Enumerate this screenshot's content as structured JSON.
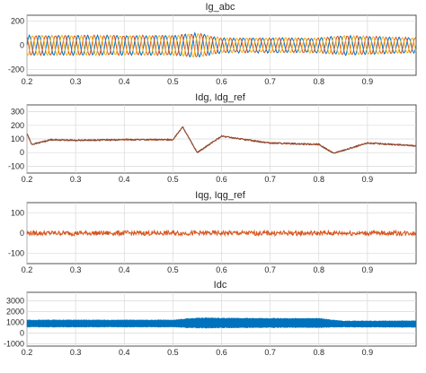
{
  "chart_data": [
    {
      "type": "line",
      "title": "Ig_abc",
      "xlim": [
        0.2,
        1.0
      ],
      "ylim": [
        -250,
        250
      ],
      "x_ticks": [
        "0.2",
        "0.3",
        "0.4",
        "0.5",
        "0.6",
        "0.7",
        "0.8",
        "0.9"
      ],
      "y_ticks": [
        "200",
        "0",
        "-200"
      ],
      "grid": true,
      "series": [
        {
          "color": "#0072bd",
          "x": [
            0.2,
            0.5,
            0.55,
            0.6,
            0.7,
            0.8,
            0.85,
            1.0
          ],
          "y_amplitude": [
            80,
            80,
            100,
            60,
            60,
            60,
            80,
            60
          ]
        },
        {
          "color": "#d95319",
          "x": [
            0.2,
            0.5,
            0.55,
            0.6,
            0.7,
            0.8,
            0.85,
            1.0
          ],
          "y_amplitude": [
            80,
            80,
            100,
            60,
            60,
            60,
            80,
            60
          ]
        },
        {
          "color": "#edb120",
          "x": [
            0.2,
            0.5,
            0.55,
            0.6,
            0.7,
            0.8,
            0.85,
            1.0
          ],
          "y_amplitude": [
            80,
            80,
            100,
            60,
            60,
            60,
            80,
            60
          ]
        }
      ]
    },
    {
      "type": "line",
      "title": "Idg, Idg_ref",
      "xlim": [
        0.2,
        1.0
      ],
      "ylim": [
        -150,
        350
      ],
      "x_ticks": [
        "0.2",
        "0.3",
        "0.4",
        "0.5",
        "0.6",
        "0.7",
        "0.8",
        "0.9"
      ],
      "y_ticks": [
        "300",
        "200",
        "100",
        "0",
        "-100"
      ],
      "grid": true,
      "series": [
        {
          "color": "#d95319",
          "x": [
            0.2,
            0.21,
            0.25,
            0.3,
            0.4,
            0.5,
            0.52,
            0.55,
            0.6,
            0.7,
            0.8,
            0.83,
            0.9,
            1.0
          ],
          "y": [
            140,
            60,
            95,
            90,
            95,
            95,
            190,
            0,
            120,
            70,
            60,
            -5,
            70,
            50
          ]
        },
        {
          "color": "#7f4a3a",
          "x": [
            0.2,
            0.21,
            0.25,
            0.3,
            0.4,
            0.5,
            0.52,
            0.55,
            0.6,
            0.7,
            0.8,
            0.83,
            0.9,
            1.0
          ],
          "y": [
            140,
            60,
            95,
            90,
            95,
            95,
            190,
            0,
            120,
            70,
            60,
            -5,
            70,
            50
          ]
        }
      ]
    },
    {
      "type": "line",
      "title": "Iqg, Iqg_ref",
      "xlim": [
        0.2,
        1.0
      ],
      "ylim": [
        -150,
        150
      ],
      "x_ticks": [
        "0.2",
        "0.3",
        "0.4",
        "0.5",
        "0.6",
        "0.7",
        "0.8",
        "0.9"
      ],
      "y_ticks": [
        "100",
        "0",
        "-100"
      ],
      "grid": true,
      "series": [
        {
          "color": "#d95319",
          "x": [
            0.2,
            0.5,
            0.8,
            1.0
          ],
          "y": [
            0,
            0,
            0,
            0
          ],
          "noise_amplitude": 12
        }
      ]
    },
    {
      "type": "line",
      "title": "Idc",
      "xlim": [
        0.2,
        1.0
      ],
      "ylim": [
        -1200,
        3800
      ],
      "x_ticks": [
        "0.2",
        "0.3",
        "0.4",
        "0.5",
        "0.6",
        "0.7",
        "0.8",
        "0.9"
      ],
      "y_ticks": [
        "3000",
        "2000",
        "1000",
        "0",
        "-1000"
      ],
      "grid": true,
      "series": [
        {
          "color": "#0072bd",
          "x": [
            0.2,
            0.5,
            0.55,
            0.7,
            0.8,
            0.85,
            1.0
          ],
          "y": [
            900,
            900,
            950,
            950,
            950,
            850,
            850
          ],
          "band_halfwidth": [
            350,
            350,
            500,
            450,
            450,
            300,
            320
          ]
        }
      ]
    }
  ]
}
